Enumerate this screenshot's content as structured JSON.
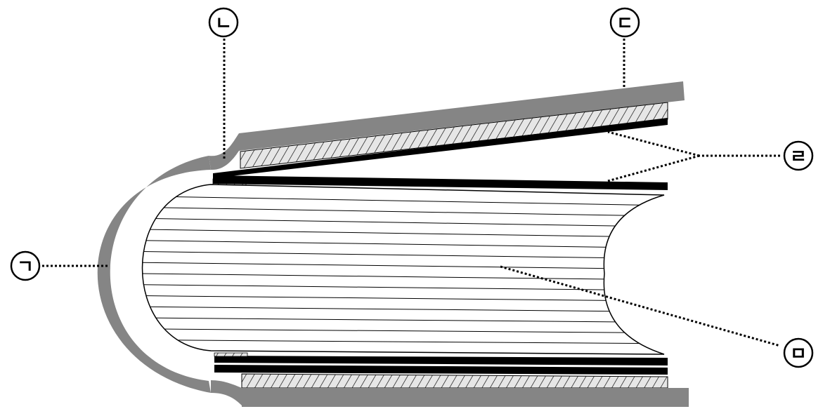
{
  "labels": {
    "spine": "ㄱ",
    "hinge": "ㄴ",
    "cover": "ㄷ",
    "endpaper": "ㄹ",
    "text_block": "ㅁ"
  },
  "colors": {
    "cover": "#858585",
    "board": "#e6e6e6",
    "endpaper": "#000000",
    "pages": "#ffffff",
    "background": "#ffffff"
  }
}
